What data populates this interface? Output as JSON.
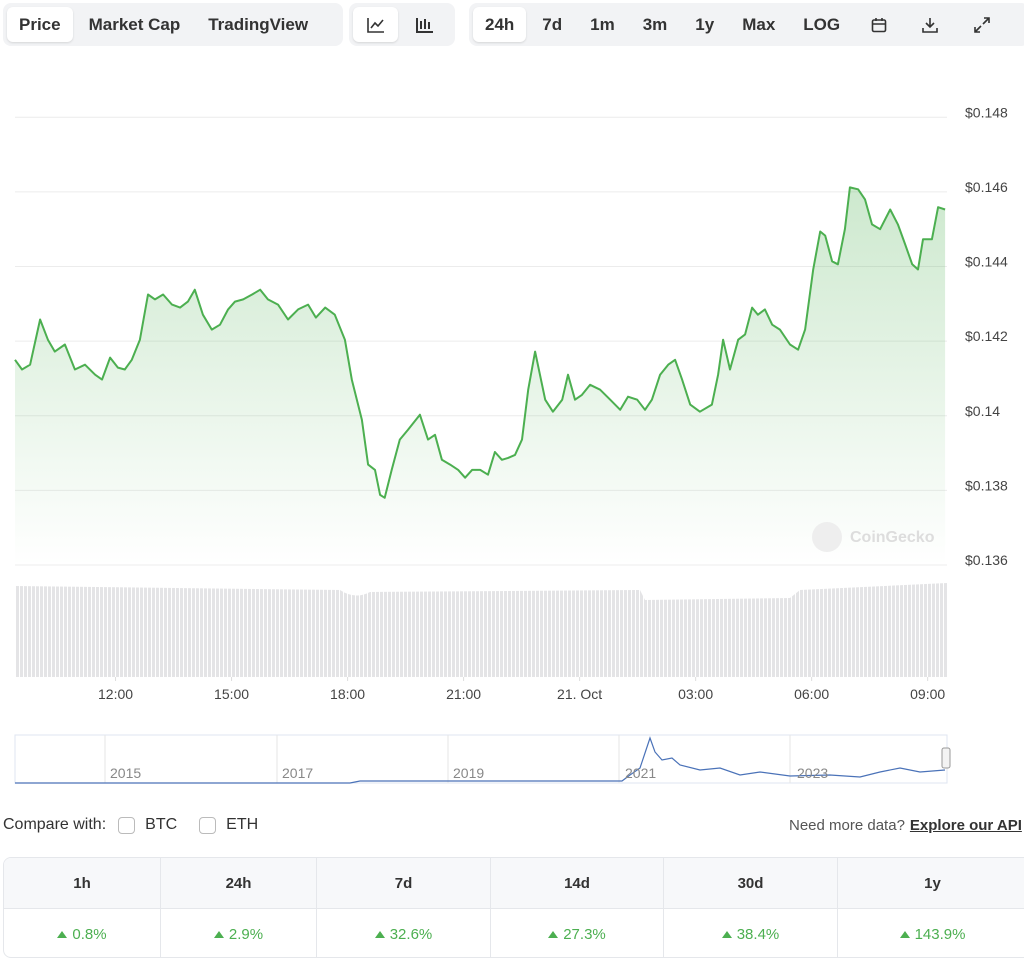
{
  "toolbar": {
    "views": [
      "Price",
      "Market Cap",
      "TradingView"
    ],
    "ranges": [
      "24h",
      "7d",
      "1m",
      "3m",
      "1y",
      "Max",
      "LOG"
    ]
  },
  "chart_data": {
    "type": "line",
    "color": "#4caf50",
    "grid": true,
    "watermark": "CoinGecko",
    "x": [
      9.4,
      9.58,
      9.79,
      10.05,
      10.25,
      10.43,
      10.69,
      10.95,
      11.21,
      11.47,
      11.65,
      11.86,
      12.06,
      12.24,
      12.42,
      12.63,
      12.84,
      13.02,
      13.23,
      13.46,
      13.67,
      13.87,
      14.05,
      14.26,
      14.49,
      14.7,
      14.91,
      15.09,
      15.3,
      15.53,
      15.74,
      15.94,
      16.2,
      16.46,
      16.72,
      16.98,
      17.18,
      17.42,
      17.67,
      17.93,
      18.11,
      18.37,
      18.53,
      18.71,
      18.84,
      18.96,
      19.14,
      19.35,
      19.56,
      19.87,
      20.08,
      20.26,
      20.44,
      20.65,
      20.86,
      21.04,
      21.22,
      21.43,
      21.63,
      21.81,
      21.99,
      22.15,
      22.33,
      22.51,
      22.67,
      22.85,
      23.11,
      23.31,
      23.55,
      23.7,
      23.88,
      24.06,
      24.27,
      24.53,
      24.79,
      25.05,
      25.25,
      25.49,
      25.69,
      25.87,
      26.08,
      26.29,
      26.47,
      26.65,
      26.86,
      27.11,
      27.42,
      27.58,
      27.71,
      27.89,
      28.1,
      28.28,
      28.46,
      28.61,
      28.79,
      28.98,
      29.18,
      29.44,
      29.65,
      29.83,
      30.04,
      30.22,
      30.35,
      30.53,
      30.68,
      30.86,
      30.99,
      31.2,
      31.38,
      31.56,
      31.77,
      32.03,
      32.23,
      32.42,
      32.6,
      32.75,
      32.88,
      33.11,
      33.27,
      33.45
    ],
    "values": [
      0.1415,
      0.14124,
      0.14137,
      0.14258,
      0.14204,
      0.14172,
      0.14191,
      0.14124,
      0.14137,
      0.1411,
      0.14097,
      0.14156,
      0.14129,
      0.14124,
      0.1415,
      0.14204,
      0.14325,
      0.14312,
      0.14325,
      0.14298,
      0.1429,
      0.14306,
      0.14338,
      0.14271,
      0.14231,
      0.14244,
      0.14285,
      0.14306,
      0.14312,
      0.14325,
      0.14338,
      0.14312,
      0.14298,
      0.14258,
      0.14285,
      0.14298,
      0.14263,
      0.1429,
      0.14271,
      0.14204,
      0.14097,
      0.13989,
      0.13869,
      0.13855,
      0.13788,
      0.1378,
      0.13855,
      0.13936,
      0.13962,
      0.14003,
      0.13936,
      0.13949,
      0.13882,
      0.13869,
      0.13855,
      0.13834,
      0.13855,
      0.13855,
      0.13842,
      0.13903,
      0.13882,
      0.13887,
      0.13895,
      0.13936,
      0.1407,
      0.14172,
      0.14043,
      0.14011,
      0.14043,
      0.1411,
      0.14043,
      0.14056,
      0.14083,
      0.1407,
      0.14043,
      0.14016,
      0.14051,
      0.14043,
      0.14016,
      0.14043,
      0.1411,
      0.14137,
      0.1415,
      0.14097,
      0.1403,
      0.14011,
      0.1403,
      0.1411,
      0.14204,
      0.14124,
      0.14204,
      0.14218,
      0.1429,
      0.14271,
      0.14285,
      0.14244,
      0.14231,
      0.14191,
      0.14177,
      0.14231,
      0.14392,
      0.14494,
      0.14483,
      0.14414,
      0.14406,
      0.145,
      0.14612,
      0.14607,
      0.1458,
      0.14513,
      0.145,
      0.14553,
      0.14513,
      0.14459,
      0.14406,
      0.14392,
      0.14473,
      0.14473,
      0.14559,
      0.14553
    ],
    "xlim": [
      9.4,
      33.5
    ],
    "xticks": [
      {
        "value": 12,
        "label": "12:00"
      },
      {
        "value": 15,
        "label": "15:00"
      },
      {
        "value": 18,
        "label": "18:00"
      },
      {
        "value": 21,
        "label": "21:00"
      },
      {
        "value": 24,
        "label": "21. Oct"
      },
      {
        "value": 27,
        "label": "03:00"
      },
      {
        "value": 30,
        "label": "06:00"
      },
      {
        "value": 33,
        "label": "09:00"
      }
    ],
    "ylim": [
      0.136,
      0.149
    ],
    "yticks": [
      {
        "value": 0.136,
        "label": "$0.136"
      },
      {
        "value": 0.138,
        "label": "$0.138"
      },
      {
        "value": 0.14,
        "label": "$0.14"
      },
      {
        "value": 0.142,
        "label": "$0.142"
      },
      {
        "value": 0.144,
        "label": "$0.144"
      },
      {
        "value": 0.146,
        "label": "$0.146"
      },
      {
        "value": 0.148,
        "label": "$0.148"
      }
    ]
  },
  "navigator": {
    "labels": [
      "2015",
      "2017",
      "2019",
      "2021",
      "2023"
    ]
  },
  "compare": {
    "label": "Compare with:",
    "options": [
      "BTC",
      "ETH"
    ],
    "note": "Need more data?",
    "link": "Explore our API"
  },
  "table": {
    "header": [
      "1h",
      "24h",
      "7d",
      "14d",
      "30d",
      "1y"
    ],
    "rows": [
      [
        "0.8%",
        "2.9%",
        "32.6%",
        "27.3%",
        "38.4%",
        "143.9%"
      ]
    ]
  }
}
